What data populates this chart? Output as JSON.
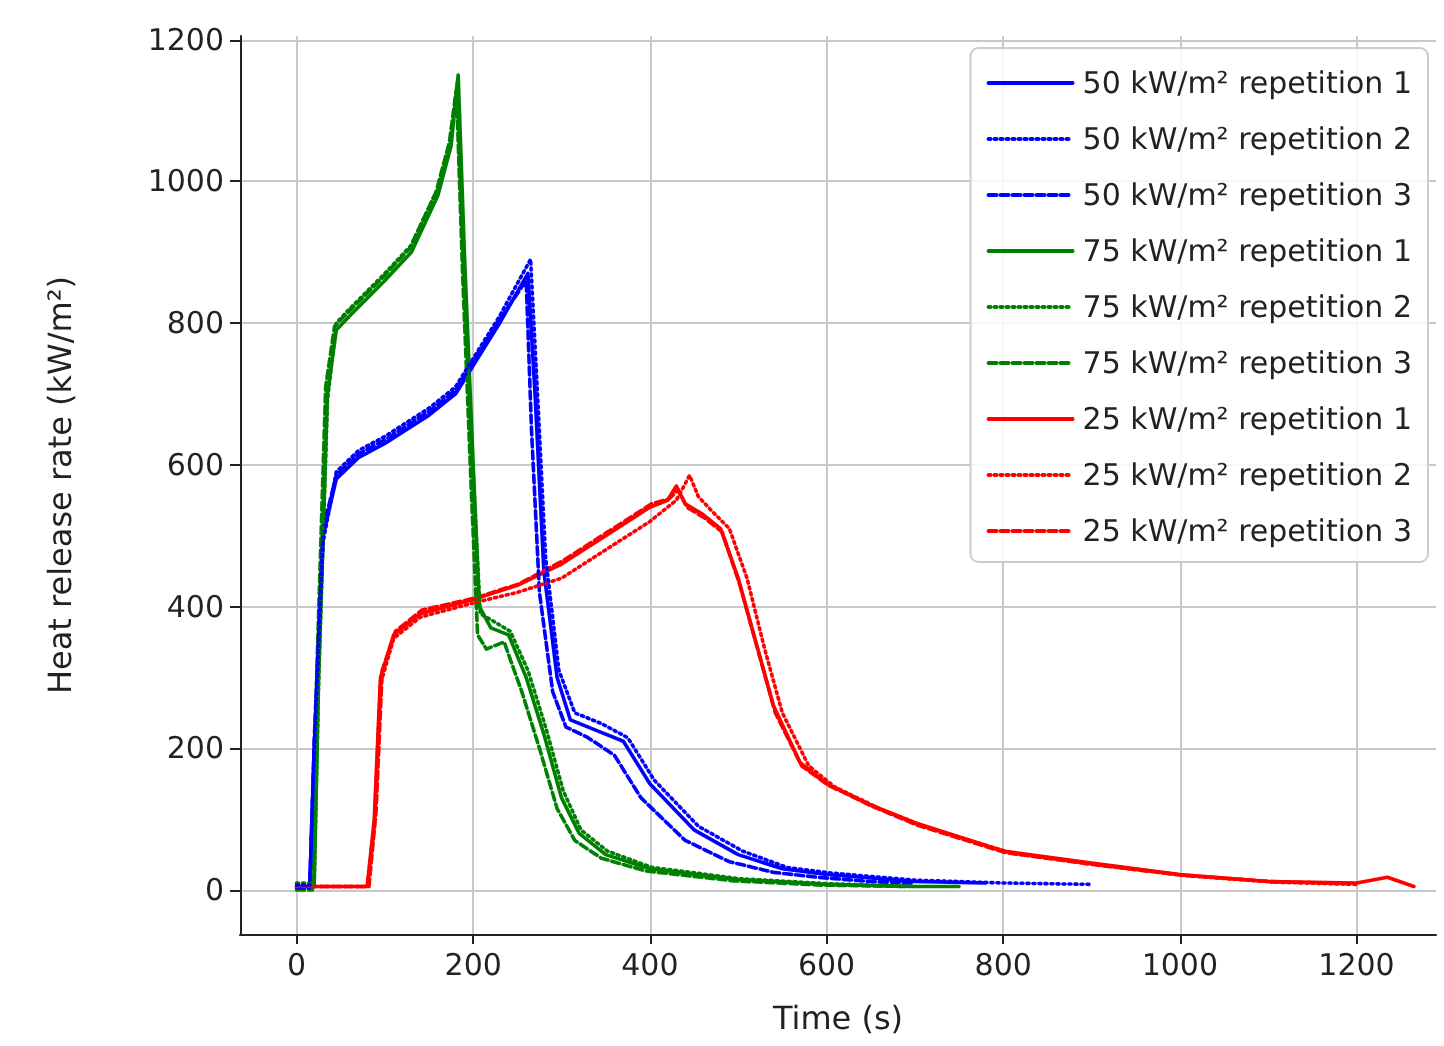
{
  "chart_data": {
    "type": "line",
    "xlabel": "Time (s)",
    "ylabel": "Heat release rate (kW/m²)",
    "xlim": [
      -64,
      1290
    ],
    "ylim": [
      -62,
      1205
    ],
    "xticks": [
      0,
      200,
      400,
      600,
      800,
      1000,
      1200
    ],
    "yticks": [
      0,
      200,
      400,
      600,
      800,
      1000,
      1200
    ],
    "grid": true,
    "legend": "top right",
    "marker": "none",
    "series": [
      {
        "name": "50 kW/m² repetition 1",
        "color": "#0000ff",
        "line_style": "solid",
        "x": [
          0,
          15,
          20,
          30,
          45,
          70,
          100,
          150,
          180,
          200,
          230,
          262,
          270,
          280,
          295,
          310,
          340,
          370,
          400,
          450,
          500,
          550,
          600,
          700,
          780
        ],
        "values": [
          5,
          5,
          200,
          500,
          580,
          610,
          630,
          670,
          700,
          740,
          800,
          870,
          700,
          450,
          300,
          240,
          225,
          210,
          150,
          85,
          50,
          30,
          22,
          12,
          10
        ]
      },
      {
        "name": "50 kW/m² repetition 2",
        "color": "#0000ff",
        "line_style": "dotted",
        "x": [
          0,
          15,
          20,
          30,
          45,
          70,
          100,
          150,
          180,
          200,
          230,
          265,
          272,
          282,
          297,
          315,
          345,
          375,
          405,
          455,
          505,
          555,
          605,
          700,
          800,
          900
        ],
        "values": [
          7,
          7,
          190,
          490,
          590,
          620,
          640,
          680,
          710,
          750,
          810,
          890,
          720,
          470,
          310,
          250,
          235,
          215,
          155,
          90,
          55,
          32,
          24,
          14,
          10,
          8
        ]
      },
      {
        "name": "50 kW/m² repetition 3",
        "color": "#0000ff",
        "line_style": "dashed",
        "x": [
          0,
          15,
          20,
          30,
          45,
          70,
          100,
          150,
          180,
          200,
          230,
          260,
          266,
          275,
          290,
          305,
          330,
          360,
          390,
          440,
          490,
          540,
          590,
          650,
          700
        ],
        "values": [
          3,
          3,
          210,
          510,
          585,
          615,
          635,
          675,
          705,
          745,
          805,
          860,
          650,
          420,
          280,
          230,
          215,
          190,
          130,
          70,
          40,
          25,
          18,
          12,
          10
        ]
      },
      {
        "name": "75 kW/m² repetition 1",
        "color": "#008000",
        "line_style": "solid",
        "x": [
          0,
          20,
          25,
          35,
          45,
          60,
          100,
          130,
          160,
          175,
          183,
          190,
          200,
          207,
          220,
          240,
          260,
          280,
          300,
          320,
          350,
          400,
          500,
          600,
          700,
          750
        ],
        "values": [
          5,
          5,
          300,
          700,
          790,
          810,
          860,
          900,
          980,
          1050,
          1150,
          900,
          600,
          400,
          370,
          360,
          300,
          220,
          130,
          80,
          50,
          30,
          15,
          8,
          5,
          5
        ]
      },
      {
        "name": "75 kW/m² repetition 2",
        "color": "#008000",
        "line_style": "dotted",
        "x": [
          0,
          20,
          25,
          35,
          45,
          60,
          100,
          130,
          160,
          175,
          182,
          189,
          200,
          208,
          222,
          242,
          262,
          282,
          302,
          322,
          352,
          402,
          502,
          602,
          700
        ],
        "values": [
          10,
          10,
          290,
          690,
          800,
          820,
          870,
          910,
          990,
          1060,
          1140,
          880,
          590,
          390,
          380,
          365,
          310,
          230,
          140,
          85,
          55,
          32,
          16,
          9,
          5
        ]
      },
      {
        "name": "75 kW/m² repetition 3",
        "color": "#008000",
        "line_style": "dashed",
        "x": [
          0,
          18,
          23,
          33,
          43,
          58,
          98,
          128,
          158,
          173,
          181,
          188,
          198,
          205,
          215,
          235,
          255,
          275,
          295,
          315,
          345,
          395,
          495,
          595,
          690
        ],
        "values": [
          0,
          0,
          310,
          710,
          795,
          815,
          865,
          905,
          985,
          1055,
          1130,
          870,
          560,
          360,
          340,
          350,
          280,
          200,
          115,
          70,
          45,
          27,
          13,
          7,
          5
        ]
      },
      {
        "name": "25 kW/m² repetition 1",
        "color": "#ff0000",
        "line_style": "solid",
        "x": [
          0,
          80,
          88,
          95,
          110,
          140,
          200,
          250,
          300,
          350,
          400,
          420,
          430,
          440,
          460,
          480,
          500,
          520,
          540,
          570,
          600,
          650,
          700,
          800,
          900,
          1000,
          1100,
          1200,
          1235,
          1265
        ],
        "values": [
          5,
          5,
          100,
          300,
          360,
          390,
          410,
          430,
          460,
          500,
          540,
          550,
          570,
          545,
          530,
          510,
          440,
          350,
          260,
          180,
          150,
          120,
          95,
          55,
          38,
          22,
          12,
          10,
          18,
          5
        ]
      },
      {
        "name": "25 kW/m² repetition 2",
        "color": "#ff0000",
        "line_style": "dotted",
        "x": [
          0,
          80,
          88,
          95,
          110,
          140,
          200,
          250,
          300,
          350,
          400,
          430,
          445,
          455,
          470,
          490,
          510,
          530,
          550,
          580,
          610,
          660,
          710,
          810,
          910,
          1010,
          1110,
          1200
        ],
        "values": [
          5,
          5,
          90,
          290,
          355,
          385,
          405,
          420,
          440,
          480,
          520,
          550,
          585,
          555,
          535,
          510,
          440,
          340,
          250,
          175,
          145,
          115,
          90,
          52,
          35,
          20,
          11,
          8
        ]
      },
      {
        "name": "25 kW/m² repetition 3",
        "color": "#ff0000",
        "line_style": "dashed",
        "x": [
          0,
          82,
          90,
          97,
          112,
          142,
          202,
          252,
          302,
          352,
          402,
          422,
          432,
          442,
          462,
          482,
          502,
          522,
          542,
          572,
          602,
          652,
          702,
          802,
          902,
          1002,
          1102,
          1190
        ],
        "values": [
          5,
          5,
          110,
          310,
          365,
          395,
          412,
          432,
          465,
          505,
          545,
          552,
          565,
          540,
          525,
          505,
          430,
          340,
          250,
          175,
          148,
          118,
          92,
          53,
          36,
          21,
          12,
          9
        ]
      }
    ]
  }
}
